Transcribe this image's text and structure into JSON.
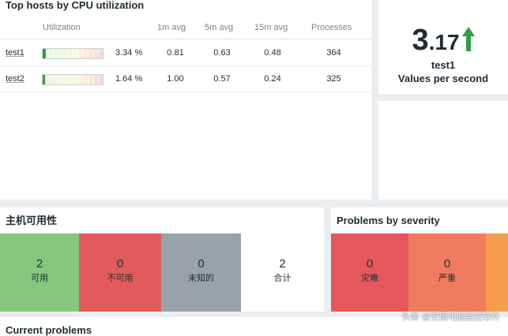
{
  "hosts_widget": {
    "title": "Top hosts by CPU utilization",
    "columns": {
      "utilization": "Utilization",
      "avg1": "1m avg",
      "avg5": "5m avg",
      "avg15": "15m avg",
      "processes": "Processes"
    },
    "rows": [
      {
        "host": "test1",
        "utilization_pct": 3.34,
        "utilization": "3.34 %",
        "avg1": "0.81",
        "avg5": "0.63",
        "avg15": "0.48",
        "processes": "364"
      },
      {
        "host": "test2",
        "utilization_pct": 1.64,
        "utilization": "1.64 %",
        "avg1": "1.00",
        "avg5": "0.57",
        "avg15": "0.24",
        "processes": "325"
      }
    ]
  },
  "item_widget": {
    "value_int": "3",
    "value_dec": ".17",
    "trend": "up",
    "trend_color": "#2f9e3f",
    "host": "test1",
    "description": "Values per second"
  },
  "availability_widget": {
    "title": "主机可用性",
    "cells": [
      {
        "count": "2",
        "label": "可用",
        "color": "#86c77d"
      },
      {
        "count": "0",
        "label": "不可用",
        "color": "#e15a5c"
      },
      {
        "count": "0",
        "label": "未知的",
        "color": "#97a3a9"
      },
      {
        "count": "2",
        "label": "合计",
        "color": "#ffffff"
      }
    ]
  },
  "severity_widget": {
    "title": "Problems by severity",
    "cells": [
      {
        "count": "0",
        "label": "灾难",
        "color": "#e4575a"
      },
      {
        "count": "0",
        "label": "严重",
        "color": "#ef7c5e"
      },
      {
        "color": "#f59c4d"
      }
    ]
  },
  "current_problems": {
    "title": "Current problems"
  },
  "watermark": "头条 @安固电脑监控软件"
}
